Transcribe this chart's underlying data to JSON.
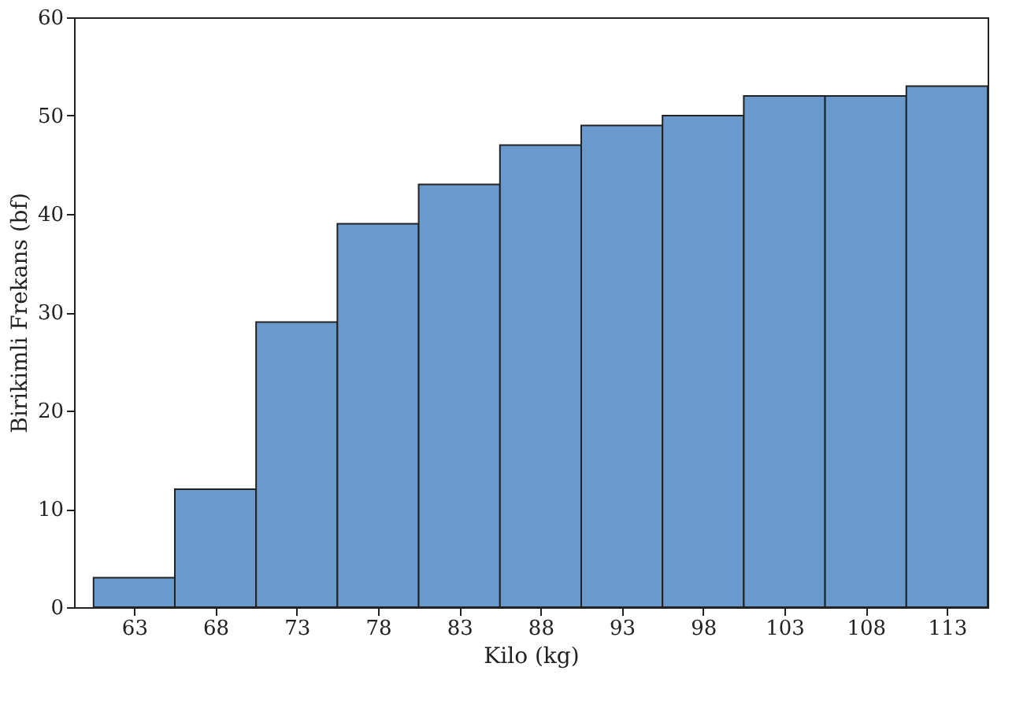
{
  "chart_data": {
    "type": "histogram",
    "xlabel": "Kilo (kg)",
    "ylabel": "Birikimli Frekans (bf)",
    "bins": [
      60.5,
      65.5,
      70.5,
      75.5,
      80.5,
      85.5,
      90.5,
      95.5,
      100.5,
      105.5,
      110.5,
      115.5
    ],
    "values": [
      3,
      12,
      29,
      39,
      43,
      47,
      49,
      50,
      52,
      52,
      53
    ],
    "color": "#6a9acd",
    "xlim": [
      59.3,
      115.5
    ],
    "xticks": [
      63,
      68,
      73,
      78,
      83,
      88,
      93,
      98,
      103,
      108,
      113
    ],
    "ylim": [
      0,
      60
    ],
    "yticks": [
      0,
      10,
      20,
      30,
      40,
      50,
      60
    ],
    "grid": false
  }
}
